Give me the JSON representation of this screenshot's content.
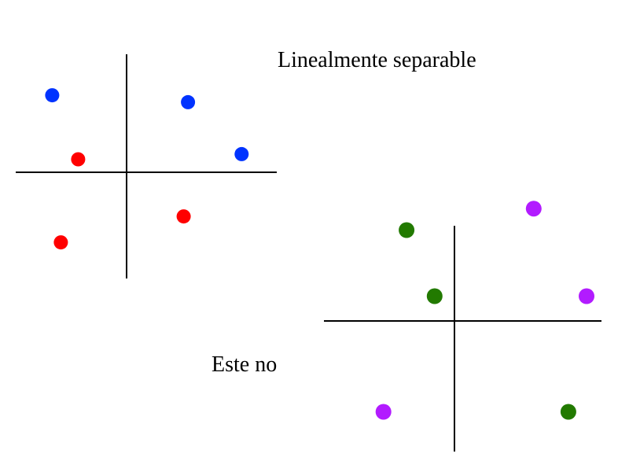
{
  "labels": {
    "separable": "Linealmente  separable",
    "not_separable": "Este  no"
  },
  "colors": {
    "axis": "#000000",
    "class_blue": "#0033ff",
    "class_red": "#ff0000",
    "class_green": "#227a00",
    "class_purple": "#b21bff"
  },
  "plots": [
    {
      "name": "linearly-separable",
      "points": [
        {
          "class": "blue",
          "x": -0.86,
          "y": 0.89
        },
        {
          "class": "blue",
          "x": 0.71,
          "y": 0.81
        },
        {
          "class": "blue",
          "x": 1.33,
          "y": 0.21
        },
        {
          "class": "red",
          "x": -0.56,
          "y": 0.15
        },
        {
          "class": "red",
          "x": 0.66,
          "y": -0.51
        },
        {
          "class": "red",
          "x": -0.76,
          "y": -0.81
        }
      ]
    },
    {
      "name": "not-separable",
      "points": [
        {
          "class": "green",
          "x": -0.29,
          "y": 0.55
        },
        {
          "class": "green",
          "x": -0.12,
          "y": 0.15
        },
        {
          "class": "green",
          "x": 0.69,
          "y": -0.55
        },
        {
          "class": "purple",
          "x": 0.48,
          "y": 0.68
        },
        {
          "class": "purple",
          "x": 0.8,
          "y": 0.15
        },
        {
          "class": "purple",
          "x": -0.43,
          "y": -0.55
        }
      ]
    }
  ]
}
